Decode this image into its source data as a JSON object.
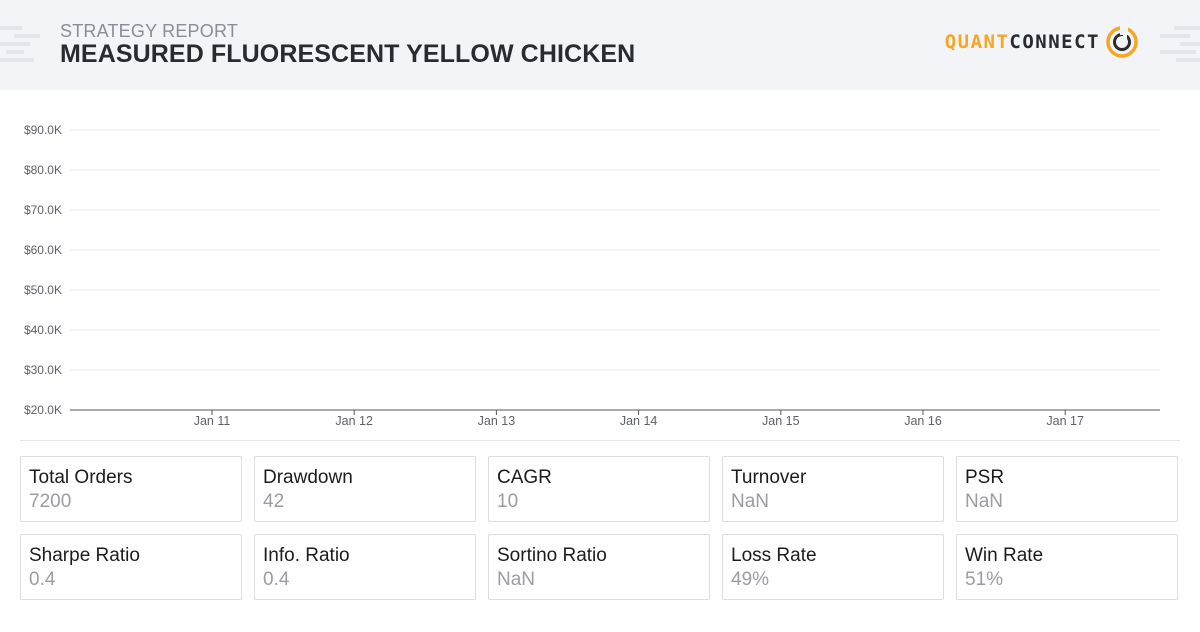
{
  "header": {
    "label": "STRATEGY REPORT",
    "title": "MEASURED FLUORESCENT YELLOW CHICKEN",
    "logo_part1": "QUANT",
    "logo_part2": "CONNECT",
    "logo_icon": "quantconnect-logo-icon",
    "colors": {
      "accent": "#f5a623",
      "dark": "#2a2b30"
    }
  },
  "chart_data": {
    "type": "line",
    "title": "",
    "xlabel": "",
    "ylabel": "",
    "x_ticks": [
      "Jan 11",
      "Jan 12",
      "Jan 13",
      "Jan 14",
      "Jan 15",
      "Jan 16",
      "Jan 17"
    ],
    "y_ticks": [
      "$20.0K",
      "$30.0K",
      "$40.0K",
      "$50.0K",
      "$60.0K",
      "$70.0K",
      "$80.0K",
      "$90.0K"
    ],
    "ylim": [
      20000,
      90000
    ],
    "grid": true,
    "series": []
  },
  "stats": [
    {
      "label": "Total Orders",
      "value": "7200"
    },
    {
      "label": "Drawdown",
      "value": "42"
    },
    {
      "label": "CAGR",
      "value": "10"
    },
    {
      "label": "Turnover",
      "value": "NaN"
    },
    {
      "label": "PSR",
      "value": "NaN"
    },
    {
      "label": "Sharpe Ratio",
      "value": "0.4"
    },
    {
      "label": "Info. Ratio",
      "value": "0.4"
    },
    {
      "label": "Sortino Ratio",
      "value": "NaN"
    },
    {
      "label": "Loss Rate",
      "value": "49%"
    },
    {
      "label": "Win Rate",
      "value": "51%"
    }
  ]
}
